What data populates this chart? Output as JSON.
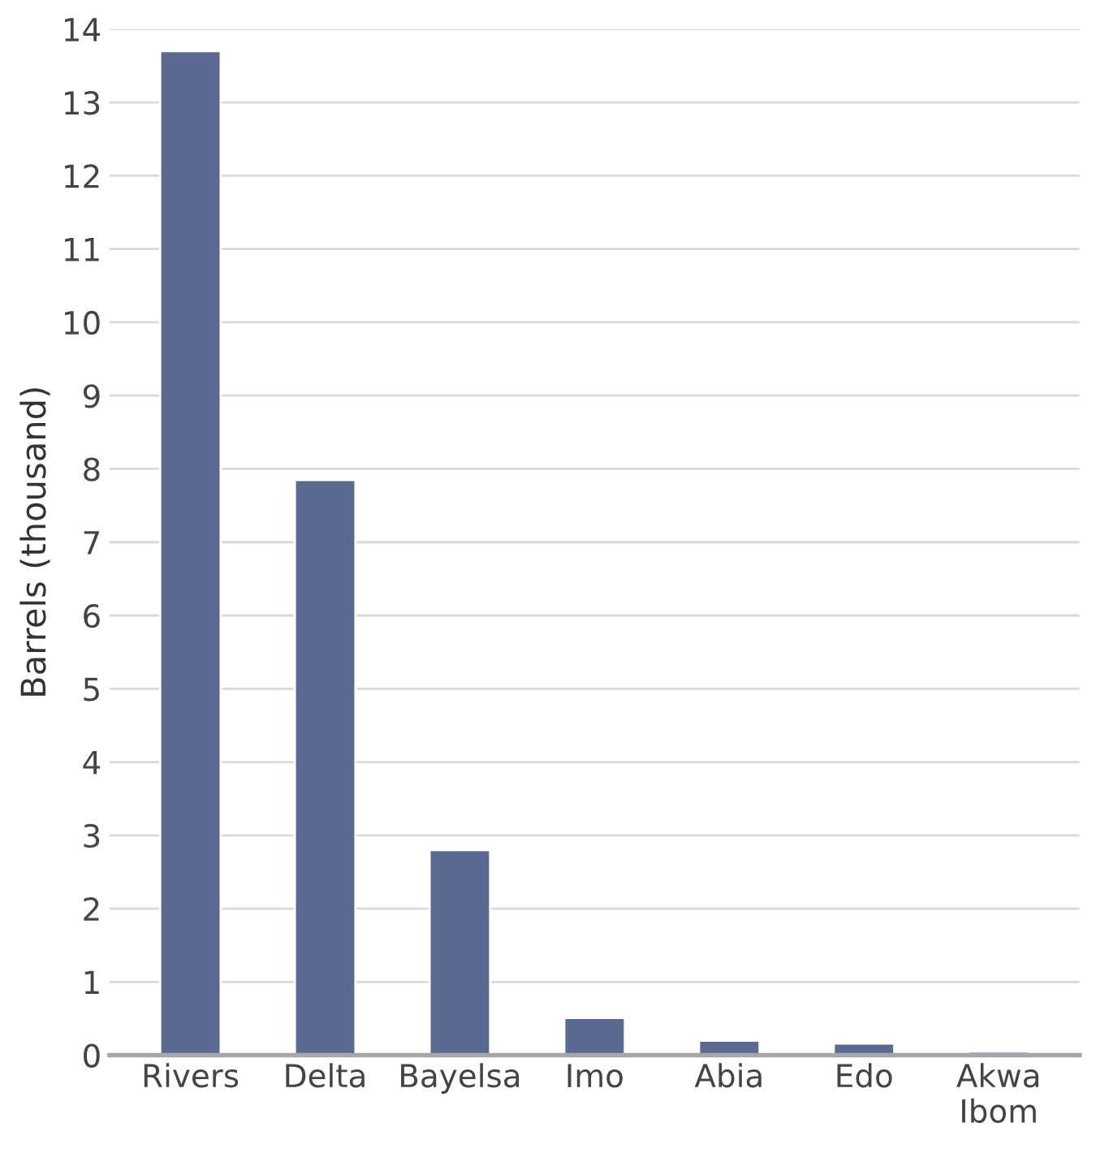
{
  "chart_data": {
    "type": "bar",
    "ylabel": "Barrels (thousand)",
    "categories": [
      "Rivers",
      "Delta",
      "Bayelsa",
      "Imo",
      "Abia",
      "Edo",
      "Akwa\nIbom"
    ],
    "values": [
      13.7,
      7.85,
      2.8,
      0.51,
      0.2,
      0.16,
      0.05
    ],
    "color": "#5b6a91",
    "ylim": [
      0,
      14
    ],
    "yticks": [
      0,
      1,
      2,
      3,
      4,
      5,
      6,
      7,
      8,
      9,
      10,
      11,
      12,
      13,
      14
    ],
    "grid": "y"
  }
}
